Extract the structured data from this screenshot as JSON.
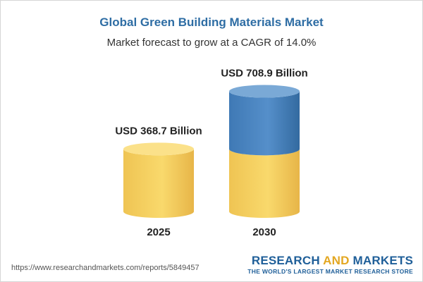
{
  "header": {
    "title": "Global Green Building Materials Market",
    "subtitle": "Market forecast to grow at a CAGR of 14.0%"
  },
  "chart_data": {
    "type": "bar",
    "style": "cylinder",
    "categories": [
      "2025",
      "2030"
    ],
    "values": [
      368.7,
      708.9
    ],
    "data_labels": [
      "USD 368.7 Billion",
      "USD 708.9 Billion"
    ],
    "title": "Global Green Building Materials Market",
    "subtitle": "Market forecast to grow at a CAGR of 14.0%",
    "grid": false,
    "legend": "none",
    "colors": {
      "base": "#f5cf5e",
      "base_side": "#e9b94a",
      "base_top": "#fbe18a",
      "growth": "#4a86c0",
      "growth_side": "#376ea6",
      "growth_top": "#7aa9d6"
    }
  },
  "footer": {
    "source_url": "https://www.researchandmarkets.com/reports/5849457",
    "brand_word_1": "RESEARCH",
    "brand_word_2": "AND",
    "brand_word_3": "MARKETS",
    "brand_tagline": "THE WORLD'S LARGEST MARKET RESEARCH STORE"
  }
}
